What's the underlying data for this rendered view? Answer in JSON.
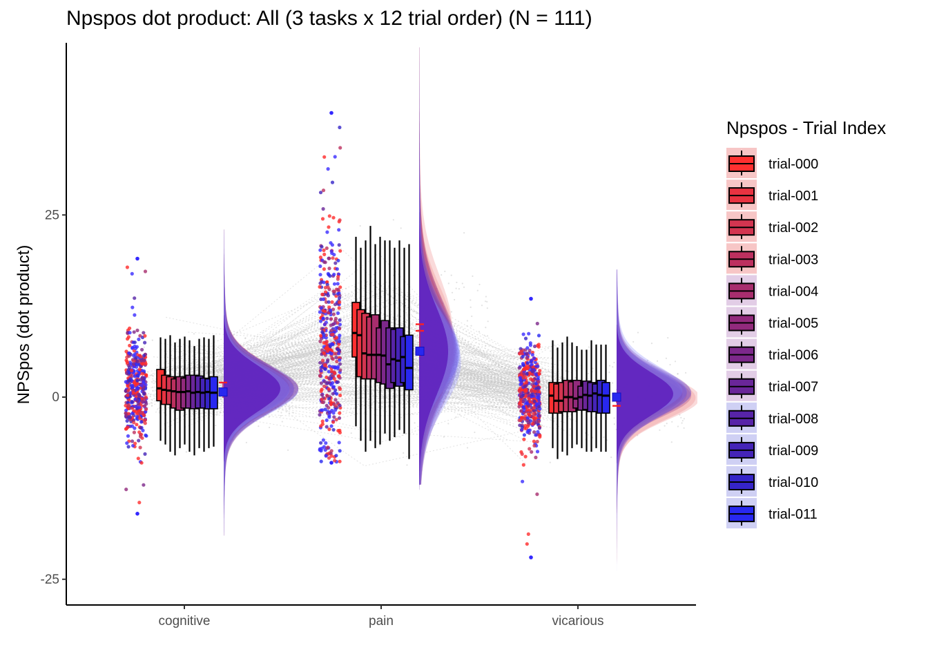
{
  "chart_data": {
    "type": "raincloud",
    "title": "Npspos dot product: All (3 tasks x 12 trial order) (N = 111)",
    "xlabel": "",
    "ylabel": "NPSpos  (dot product)",
    "ylim": [
      -28,
      49
    ],
    "y_ticks": [
      -25,
      0,
      25
    ],
    "y_tick_labels": [
      "-25",
      "0",
      "25"
    ],
    "categories": [
      "cognitive",
      "pain",
      "vicarious"
    ],
    "legend": {
      "title": "Npspos - Trial Index",
      "position": "right",
      "items": [
        "trial-000",
        "trial-001",
        "trial-002",
        "trial-003",
        "trial-004",
        "trial-005",
        "trial-006",
        "trial-007",
        "trial-008",
        "trial-009",
        "trial-010",
        "trial-011"
      ]
    },
    "colors": [
      "#ff3030",
      "#e83341",
      "#d33550",
      "#bd305f",
      "#a82d6e",
      "#922a7d",
      "#7d288b",
      "#6a2699",
      "#5724a8",
      "#4524b8",
      "#3524c8",
      "#2828f0"
    ],
    "series": [
      {
        "category": "cognitive",
        "trials": [
          {
            "q1": -0.5,
            "median": 1.2,
            "q3": 3.8,
            "lo": -6.0,
            "hi": 8.2
          },
          {
            "q1": -1.0,
            "median": 1.0,
            "q3": 3.0,
            "lo": -6.5,
            "hi": 8.0
          },
          {
            "q1": -1.0,
            "median": 0.9,
            "q3": 2.8,
            "lo": -7.5,
            "hi": 8.5
          },
          {
            "q1": -1.5,
            "median": 0.8,
            "q3": 2.5,
            "lo": -8.0,
            "hi": 7.5
          },
          {
            "q1": -1.8,
            "median": 0.7,
            "q3": 2.8,
            "lo": -7.0,
            "hi": 8.0
          },
          {
            "q1": -1.5,
            "median": 0.7,
            "q3": 2.6,
            "lo": -6.5,
            "hi": 8.3
          },
          {
            "q1": -1.5,
            "median": 0.8,
            "q3": 3.0,
            "lo": -7.5,
            "hi": 7.8
          },
          {
            "q1": -1.6,
            "median": 0.6,
            "q3": 3.0,
            "lo": -8.0,
            "hi": 7.0
          },
          {
            "q1": -1.5,
            "median": 0.7,
            "q3": 2.9,
            "lo": -7.0,
            "hi": 8.0
          },
          {
            "q1": -1.5,
            "median": 0.6,
            "q3": 2.6,
            "lo": -7.5,
            "hi": 8.2
          },
          {
            "q1": -1.6,
            "median": 0.7,
            "q3": 2.5,
            "lo": -7.0,
            "hi": 8.0
          },
          {
            "q1": -1.6,
            "median": 0.6,
            "q3": 2.8,
            "lo": -6.8,
            "hi": 8.5
          }
        ]
      },
      {
        "category": "pain",
        "trials": [
          {
            "q1": 5.5,
            "median": 8.8,
            "q3": 13.0,
            "lo": -4.0,
            "hi": 22.0
          },
          {
            "q1": 2.8,
            "median": 8.5,
            "q3": 12.0,
            "lo": -6.0,
            "hi": 20.5
          },
          {
            "q1": 2.5,
            "median": 6.0,
            "q3": 11.5,
            "lo": -7.5,
            "hi": 21.5
          },
          {
            "q1": 2.5,
            "median": 5.8,
            "q3": 11.0,
            "lo": -6.0,
            "hi": 23.5
          },
          {
            "q1": 2.5,
            "median": 5.8,
            "q3": 11.3,
            "lo": -7.0,
            "hi": 21.0
          },
          {
            "q1": 2.0,
            "median": 5.8,
            "q3": 9.5,
            "lo": -6.5,
            "hi": 22.0
          },
          {
            "q1": 1.8,
            "median": 5.7,
            "q3": 10.5,
            "lo": -5.0,
            "hi": 21.5
          },
          {
            "q1": 1.2,
            "median": 4.5,
            "q3": 9.5,
            "lo": -6.0,
            "hi": 21.5
          },
          {
            "q1": 2.0,
            "median": 5.2,
            "q3": 9.3,
            "lo": -5.5,
            "hi": 20.5
          },
          {
            "q1": 1.5,
            "median": 5.0,
            "q3": 9.5,
            "lo": -4.5,
            "hi": 21.5
          },
          {
            "q1": 2.0,
            "median": 5.5,
            "q3": 8.3,
            "lo": -5.0,
            "hi": 20.5
          },
          {
            "q1": 1.0,
            "median": 4.0,
            "q3": 8.5,
            "lo": -8.5,
            "hi": 21.0
          }
        ]
      },
      {
        "category": "vicarious",
        "trials": [
          {
            "q1": -2.2,
            "median": 0.2,
            "q3": 2.0,
            "lo": -7.0,
            "hi": 7.8
          },
          {
            "q1": -2.2,
            "median": -0.5,
            "q3": 1.8,
            "lo": -8.5,
            "hi": 6.8
          },
          {
            "q1": -2.0,
            "median": -0.5,
            "q3": 2.0,
            "lo": -7.5,
            "hi": 7.5
          },
          {
            "q1": -2.0,
            "median": 0.0,
            "q3": 2.3,
            "lo": -8.0,
            "hi": 8.3
          },
          {
            "q1": -2.0,
            "median": 0.0,
            "q3": 2.1,
            "lo": -7.0,
            "hi": 7.5
          },
          {
            "q1": -1.5,
            "median": -0.2,
            "q3": 2.3,
            "lo": -6.5,
            "hi": 7.0
          },
          {
            "q1": -1.8,
            "median": 0.0,
            "q3": 1.5,
            "lo": -7.0,
            "hi": 6.5
          },
          {
            "q1": -1.7,
            "median": 0.3,
            "q3": 2.2,
            "lo": -7.5,
            "hi": 6.5
          },
          {
            "q1": -2.0,
            "median": 0.2,
            "q3": 2.0,
            "lo": -7.5,
            "hi": 7.8
          },
          {
            "q1": -2.0,
            "median": 0.5,
            "q3": 1.8,
            "lo": -7.0,
            "hi": 7.2
          },
          {
            "q1": -2.2,
            "median": 0.3,
            "q3": 2.3,
            "lo": -7.5,
            "hi": 7.2
          },
          {
            "q1": -2.2,
            "median": 0.2,
            "q3": 2.0,
            "lo": -7.5,
            "hi": 7.2
          }
        ]
      }
    ],
    "mean_points": [
      {
        "category": "cognitive",
        "first": 1.6,
        "last": 0.7
      },
      {
        "category": "pain",
        "first": 9.6,
        "last": 6.3
      },
      {
        "category": "vicarious",
        "first": -0.7,
        "last": 0.0
      }
    ],
    "raw_range": [
      {
        "category": "cognitive",
        "min": -16,
        "max": 19
      },
      {
        "category": "pain",
        "min": -9,
        "max": 39
      },
      {
        "category": "vicarious",
        "min": -22,
        "max": 13.5
      }
    ]
  }
}
